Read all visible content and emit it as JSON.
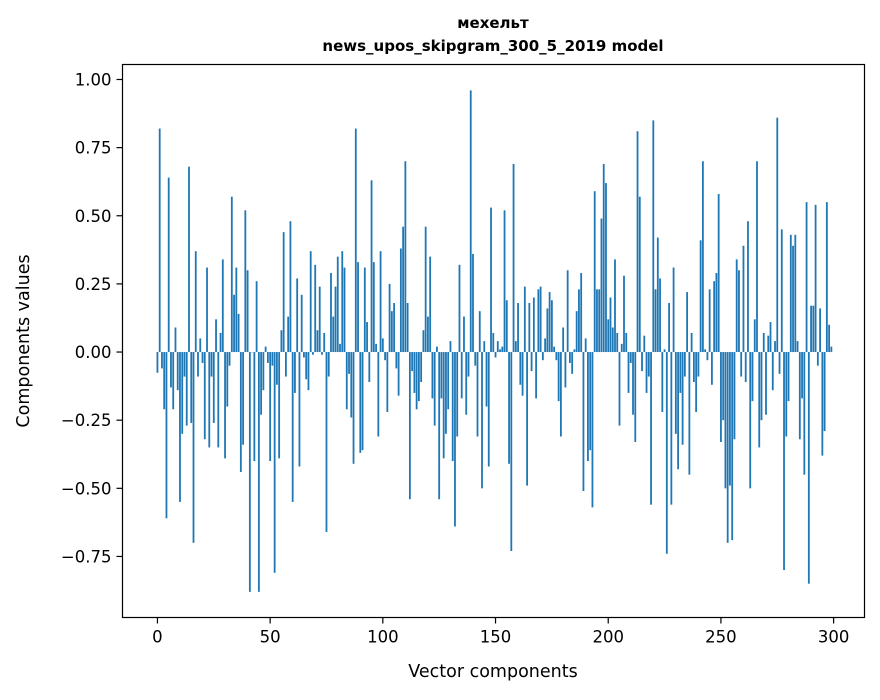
{
  "chart_data": {
    "type": "bar",
    "title": [
      "мехельт",
      "news_upos_skipgram_300_5_2019 model"
    ],
    "xlabel": "Vector components",
    "ylabel": "Components values",
    "xlim": [
      -15.5,
      313.7
    ],
    "ylim": [
      -0.974,
      1.055
    ],
    "xticks": [
      0,
      50,
      100,
      150,
      200,
      250,
      300
    ],
    "xtick_labels": [
      "0",
      "50",
      "100",
      "150",
      "200",
      "250",
      "300"
    ],
    "yticks": [
      1.0,
      0.75,
      0.5,
      0.25,
      0.0,
      -0.25,
      -0.5,
      -0.75
    ],
    "ytick_labels": [
      "1.00",
      "0.75",
      "0.50",
      "0.25",
      "0.00",
      "−0.25",
      "−0.50",
      "−0.75"
    ],
    "grid": false,
    "color": "#1f77b4",
    "values": [
      -0.076,
      0.82,
      -0.06,
      -0.21,
      -0.61,
      0.64,
      -0.13,
      -0.21,
      0.09,
      -0.14,
      -0.55,
      -0.3,
      -0.09,
      -0.27,
      0.68,
      -0.26,
      -0.7,
      0.37,
      -0.09,
      0.05,
      -0.04,
      -0.32,
      0.31,
      -0.35,
      -0.09,
      -0.26,
      0.12,
      -0.35,
      0.07,
      0.34,
      -0.39,
      -0.2,
      -0.05,
      0.57,
      0.21,
      0.31,
      0.14,
      -0.44,
      -0.34,
      0.52,
      0.3,
      -0.88,
      0.0,
      -0.4,
      0.26,
      -0.88,
      -0.23,
      -0.14,
      0.02,
      -0.04,
      -0.4,
      -0.05,
      -0.81,
      -0.12,
      -0.39,
      0.08,
      0.44,
      -0.09,
      0.13,
      0.48,
      -0.55,
      -0.15,
      0.27,
      -0.42,
      0.21,
      -0.02,
      -0.1,
      -0.14,
      0.37,
      -0.01,
      0.32,
      0.08,
      0.24,
      -0.01,
      0.07,
      -0.66,
      -0.09,
      0.29,
      0.13,
      0.24,
      0.35,
      0.03,
      0.37,
      0.31,
      -0.21,
      -0.08,
      -0.24,
      -0.41,
      0.82,
      0.33,
      -0.37,
      -0.36,
      0.31,
      0.11,
      -0.11,
      0.63,
      0.33,
      0.03,
      -0.31,
      0.37,
      0.05,
      -0.03,
      -0.22,
      0.25,
      0.15,
      0.18,
      -0.06,
      -0.16,
      0.38,
      0.46,
      0.7,
      0.18,
      -0.54,
      -0.07,
      -0.15,
      -0.21,
      -0.18,
      -0.11,
      0.08,
      0.46,
      0.13,
      0.35,
      -0.17,
      -0.27,
      0.02,
      -0.54,
      -0.17,
      -0.39,
      -0.3,
      -0.21,
      0.04,
      -0.4,
      -0.64,
      -0.31,
      0.32,
      -0.17,
      0.13,
      -0.23,
      -0.09,
      0.96,
      0.36,
      -0.05,
      -0.31,
      0.15,
      -0.5,
      0.04,
      -0.2,
      -0.42,
      0.53,
      0.07,
      -0.02,
      0.04,
      0.01,
      0.02,
      0.52,
      0.19,
      -0.41,
      -0.73,
      0.69,
      0.04,
      0.18,
      -0.12,
      -0.16,
      0.24,
      -0.49,
      0.18,
      -0.07,
      0.2,
      -0.17,
      0.23,
      0.24,
      -0.03,
      0.05,
      0.16,
      0.22,
      0.19,
      0.02,
      -0.03,
      -0.18,
      -0.31,
      0.09,
      -0.13,
      0.3,
      -0.04,
      -0.08,
      0.01,
      0.15,
      0.23,
      0.29,
      -0.51,
      0.05,
      -0.4,
      -0.36,
      -0.57,
      0.59,
      0.23,
      0.23,
      0.49,
      0.69,
      0.62,
      0.12,
      0.2,
      0.09,
      0.34,
      0.07,
      -0.27,
      0.03,
      0.28,
      0.07,
      -0.15,
      -0.04,
      -0.23,
      -0.33,
      0.81,
      0.57,
      -0.07,
      0.06,
      -0.15,
      -0.09,
      -0.56,
      0.85,
      0.23,
      0.42,
      0.27,
      -0.22,
      0.01,
      -0.74,
      0.18,
      -0.56,
      0.31,
      -0.3,
      -0.43,
      -0.15,
      -0.34,
      -0.09,
      0.22,
      -0.45,
      0.07,
      -0.11,
      -0.22,
      -0.09,
      0.41,
      0.7,
      0.01,
      -0.03,
      0.23,
      -0.12,
      0.26,
      0.29,
      0.58,
      -0.33,
      -0.25,
      -0.5,
      -0.7,
      -0.49,
      -0.69,
      -0.32,
      0.34,
      0.3,
      -0.09,
      0.39,
      -0.11,
      0.48,
      -0.5,
      -0.18,
      0.12,
      0.7,
      -0.35,
      -0.25,
      0.07,
      -0.23,
      0.06,
      0.11,
      -0.14,
      0.04,
      0.86,
      -0.08,
      0.45,
      -0.8,
      -0.31,
      -0.18,
      0.43,
      0.39,
      0.43,
      0.04,
      -0.32,
      -0.17,
      -0.45,
      0.55,
      -0.85,
      0.17,
      0.17,
      0.54,
      -0.05,
      0.16,
      -0.38,
      -0.29,
      0.55,
      0.1,
      0.02
    ]
  }
}
